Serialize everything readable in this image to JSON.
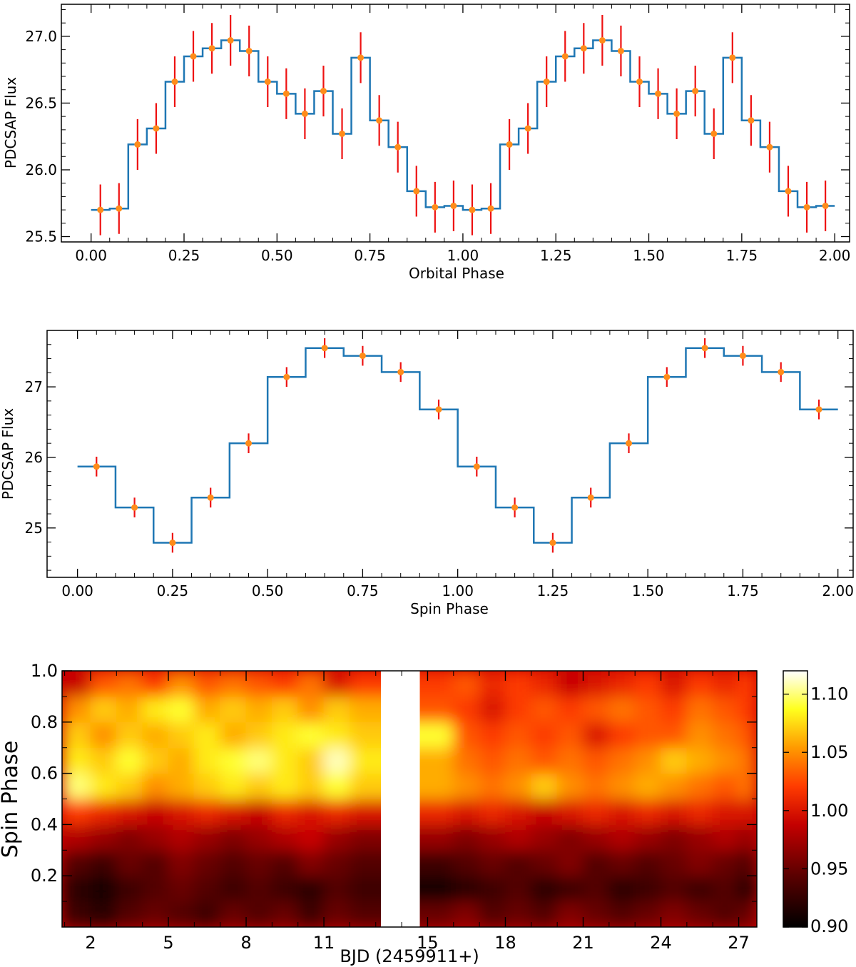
{
  "chart_data": [
    {
      "type": "line",
      "name": "orbital-phase-profile",
      "xlabel": "Orbital Phase",
      "ylabel": "PDCSAP Flux",
      "xlim": [
        -0.08,
        2.04
      ],
      "ylim": [
        25.46,
        27.24
      ],
      "xticks": [
        0.0,
        0.25,
        0.5,
        0.75,
        1.0,
        1.25,
        1.5,
        1.75,
        2.0
      ],
      "xtick_labels": [
        "0.00",
        "0.25",
        "0.50",
        "0.75",
        "1.00",
        "1.25",
        "1.50",
        "1.75",
        "2.00"
      ],
      "yticks": [
        25.5,
        26.0,
        26.5,
        27.0
      ],
      "ytick_labels": [
        "25.5",
        "26.0",
        "26.5",
        "27.0"
      ],
      "bin_width": 0.05,
      "x": [
        0.025,
        0.075,
        0.125,
        0.175,
        0.225,
        0.275,
        0.325,
        0.375,
        0.425,
        0.475,
        0.525,
        0.575,
        0.625,
        0.675,
        0.725,
        0.775,
        0.825,
        0.875,
        0.925,
        0.975,
        1.025,
        1.075,
        1.125,
        1.175,
        1.225,
        1.275,
        1.325,
        1.375,
        1.425,
        1.475,
        1.525,
        1.575,
        1.625,
        1.675,
        1.725,
        1.775,
        1.825,
        1.875,
        1.925,
        1.975
      ],
      "values": [
        25.7,
        25.71,
        26.19,
        26.31,
        26.66,
        26.85,
        26.91,
        26.97,
        26.89,
        26.66,
        26.57,
        26.42,
        26.59,
        26.27,
        26.84,
        26.37,
        26.17,
        25.84,
        25.72,
        25.73,
        25.7,
        25.71,
        26.19,
        26.31,
        26.66,
        26.85,
        26.91,
        26.97,
        26.89,
        26.66,
        26.57,
        26.42,
        26.59,
        26.27,
        26.84,
        26.37,
        26.17,
        25.84,
        25.72,
        25.73
      ],
      "errors": [
        0.19,
        0.19,
        0.19,
        0.19,
        0.19,
        0.19,
        0.19,
        0.19,
        0.19,
        0.19,
        0.19,
        0.19,
        0.19,
        0.19,
        0.19,
        0.19,
        0.19,
        0.19,
        0.19,
        0.19,
        0.19,
        0.19,
        0.19,
        0.19,
        0.19,
        0.19,
        0.19,
        0.19,
        0.19,
        0.19,
        0.19,
        0.19,
        0.19,
        0.19,
        0.19,
        0.19,
        0.19,
        0.19,
        0.19,
        0.19
      ]
    },
    {
      "type": "line",
      "name": "spin-phase-profile",
      "xlabel": "Spin Phase",
      "ylabel": "PDCSAP Flux",
      "xlim": [
        -0.08,
        2.04
      ],
      "ylim": [
        24.3,
        27.8
      ],
      "xticks": [
        0.0,
        0.25,
        0.5,
        0.75,
        1.0,
        1.25,
        1.5,
        1.75,
        2.0
      ],
      "xtick_labels": [
        "0.00",
        "0.25",
        "0.50",
        "0.75",
        "1.00",
        "1.25",
        "1.50",
        "1.75",
        "2.00"
      ],
      "yticks": [
        25,
        26,
        27
      ],
      "ytick_labels": [
        "25",
        "26",
        "27"
      ],
      "bin_width": 0.1,
      "x": [
        0.05,
        0.15,
        0.25,
        0.35,
        0.45,
        0.55,
        0.65,
        0.75,
        0.85,
        0.95,
        1.05,
        1.15,
        1.25,
        1.35,
        1.45,
        1.55,
        1.65,
        1.75,
        1.85,
        1.95
      ],
      "values": [
        25.87,
        25.29,
        24.79,
        25.43,
        26.2,
        27.14,
        27.55,
        27.44,
        27.21,
        26.68,
        25.87,
        25.29,
        24.79,
        25.43,
        26.2,
        27.14,
        27.55,
        27.44,
        27.21,
        26.68
      ],
      "errors": [
        0.14,
        0.14,
        0.14,
        0.14,
        0.14,
        0.14,
        0.14,
        0.14,
        0.14,
        0.14,
        0.14,
        0.14,
        0.14,
        0.14,
        0.14,
        0.14,
        0.14,
        0.14,
        0.14,
        0.14
      ]
    },
    {
      "type": "heatmap",
      "name": "spin-phase-vs-time",
      "xlabel": "BJD (2459911+)",
      "ylabel": "Spin Phase",
      "xlim": [
        0.9,
        27.7
      ],
      "ylim": [
        0.0,
        1.0
      ],
      "xticks": [
        2,
        5,
        8,
        11,
        15,
        18,
        21,
        24,
        27
      ],
      "xtick_labels": [
        "2",
        "5",
        "8",
        "11",
        "15",
        "18",
        "21",
        "24",
        "27"
      ],
      "yticks": [
        0.2,
        0.4,
        0.6,
        0.8,
        1.0
      ],
      "ytick_labels": [
        "0.2",
        "0.4",
        "0.6",
        "0.8",
        "1.0"
      ],
      "data_gap": [
        13.2,
        14.7
      ],
      "x_range": [
        0.9,
        27.7
      ],
      "phase_bins": [
        0.05,
        0.15,
        0.25,
        0.35,
        0.45,
        0.55,
        0.65,
        0.75,
        0.85,
        0.95
      ],
      "colorbar": {
        "vmin": 0.9,
        "vmax": 1.12,
        "ticks": [
          0.9,
          0.95,
          1.0,
          1.05,
          1.1
        ],
        "tick_labels": [
          "0.90",
          "0.95",
          "1.00",
          "1.05",
          "1.10"
        ],
        "colormap": "hot"
      },
      "time_bins": [
        1.5,
        2.5,
        3.5,
        4.5,
        5.5,
        6.5,
        7.5,
        8.5,
        9.5,
        10.5,
        11.5,
        12.5,
        15.5,
        16.5,
        17.5,
        18.5,
        19.5,
        20.5,
        21.5,
        22.5,
        23.5,
        24.5,
        25.5,
        26.5,
        27.4
      ],
      "values": [
        [
          0.93,
          0.92,
          0.94,
          0.95,
          0.94,
          0.93,
          0.95,
          0.94,
          0.95,
          0.93,
          0.95,
          0.94,
          0.95,
          0.96,
          0.94,
          0.95,
          0.94,
          0.96,
          0.95,
          0.94,
          0.95,
          0.96,
          0.95,
          0.94,
          0.95
        ],
        [
          0.92,
          0.91,
          0.93,
          0.94,
          0.95,
          0.94,
          0.93,
          0.94,
          0.93,
          0.92,
          0.94,
          0.93,
          0.91,
          0.92,
          0.93,
          0.94,
          0.92,
          0.93,
          0.94,
          0.92,
          0.93,
          0.94,
          0.93,
          0.94,
          0.92
        ],
        [
          0.94,
          0.93,
          0.95,
          0.94,
          0.96,
          0.95,
          0.94,
          0.95,
          0.94,
          0.96,
          0.95,
          0.94,
          0.93,
          0.94,
          0.95,
          0.94,
          0.95,
          0.96,
          0.94,
          0.95,
          0.94,
          0.95,
          0.96,
          0.95,
          0.94
        ],
        [
          0.98,
          0.97,
          0.96,
          0.97,
          0.98,
          0.97,
          0.96,
          0.97,
          0.98,
          0.99,
          0.97,
          0.96,
          0.97,
          0.96,
          0.97,
          0.98,
          0.97,
          0.96,
          0.97,
          0.98,
          0.97,
          0.96,
          0.97,
          0.98,
          0.97
        ],
        [
          1.02,
          1.01,
          1.0,
          0.99,
          1.0,
          1.01,
          1.0,
          0.99,
          1.01,
          1.0,
          1.01,
          1.0,
          1.01,
          1.0,
          1.01,
          1.0,
          0.99,
          1.0,
          1.01,
          1.0,
          1.01,
          1.0,
          1.01,
          1.0,
          1.0
        ],
        [
          1.1,
          1.08,
          1.07,
          1.05,
          1.06,
          1.07,
          1.08,
          1.07,
          1.08,
          1.07,
          1.09,
          1.07,
          1.06,
          1.05,
          1.04,
          1.05,
          1.07,
          1.05,
          1.04,
          1.05,
          1.06,
          1.05,
          1.04,
          1.03,
          1.04
        ],
        [
          1.08,
          1.07,
          1.09,
          1.07,
          1.06,
          1.08,
          1.09,
          1.1,
          1.08,
          1.07,
          1.11,
          1.08,
          1.06,
          1.04,
          1.03,
          1.04,
          1.03,
          1.04,
          1.03,
          1.04,
          1.05,
          1.07,
          1.06,
          1.05,
          1.04
        ],
        [
          1.07,
          1.05,
          1.07,
          1.06,
          1.07,
          1.08,
          1.06,
          1.07,
          1.08,
          1.09,
          1.08,
          1.07,
          1.09,
          1.03,
          1.02,
          1.03,
          1.02,
          1.03,
          1.0,
          1.02,
          1.03,
          1.03,
          1.05,
          1.04,
          1.03
        ],
        [
          1.05,
          1.07,
          1.06,
          1.08,
          1.09,
          1.06,
          1.07,
          1.06,
          1.07,
          1.05,
          1.07,
          1.06,
          1.03,
          1.02,
          1.0,
          1.02,
          1.03,
          1.02,
          1.03,
          1.04,
          1.03,
          1.02,
          1.04,
          1.03,
          1.02
        ],
        [
          0.99,
          1.03,
          1.04,
          1.02,
          1.05,
          1.03,
          1.04,
          1.03,
          1.02,
          1.04,
          1.0,
          1.02,
          1.02,
          1.03,
          1.01,
          1.02,
          1.01,
          0.99,
          1.0,
          1.01,
          1.02,
          1.0,
          1.02,
          1.01,
          1.02
        ]
      ]
    }
  ]
}
